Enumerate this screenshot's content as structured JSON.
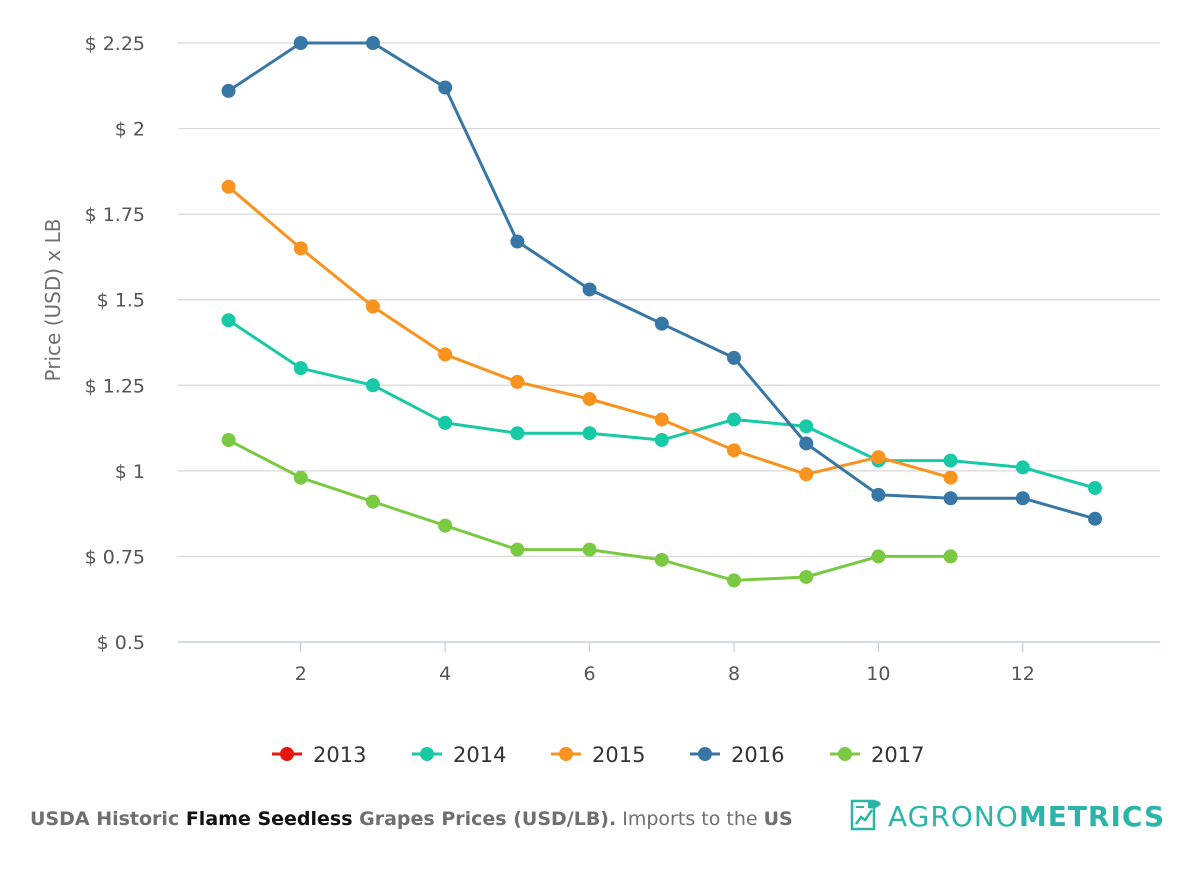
{
  "chart_data": {
    "type": "line",
    "title": "",
    "xlabel": "",
    "ylabel": "Price (USD) x LB",
    "xlim": [
      0.3,
      13.9
    ],
    "ylim": [
      0.5,
      2.25
    ],
    "x_ticks": [
      2,
      4,
      6,
      8,
      10,
      12
    ],
    "y_ticks": [
      0.5,
      0.75,
      1,
      1.25,
      1.5,
      1.75,
      2,
      2.25
    ],
    "y_tick_labels": [
      "$ 0.5",
      "$ 0.75",
      "$ 1",
      "$ 1.25",
      "$ 1.5",
      "$ 1.75",
      "$ 2",
      "$ 2.25"
    ],
    "grid": true,
    "legend_position": "bottom",
    "series": [
      {
        "name": "2013",
        "color": "#e8150f",
        "x": [],
        "y": []
      },
      {
        "name": "2014",
        "color": "#17c9a5",
        "x": [
          1,
          2,
          3,
          4,
          5,
          6,
          7,
          8,
          9,
          10,
          11,
          12,
          13
        ],
        "y": [
          1.44,
          1.3,
          1.25,
          1.14,
          1.11,
          1.11,
          1.09,
          1.15,
          1.13,
          1.03,
          1.03,
          1.01,
          0.95
        ]
      },
      {
        "name": "2015",
        "color": "#f7931e",
        "x": [
          1,
          2,
          3,
          4,
          5,
          6,
          7,
          8,
          9,
          10,
          11
        ],
        "y": [
          1.83,
          1.65,
          1.48,
          1.34,
          1.26,
          1.21,
          1.15,
          1.06,
          0.99,
          1.04,
          0.98
        ]
      },
      {
        "name": "2016",
        "color": "#3877a5",
        "x": [
          1,
          2,
          3,
          4,
          5,
          6,
          7,
          8,
          9,
          10,
          11,
          12,
          13
        ],
        "y": [
          2.11,
          2.25,
          2.25,
          2.12,
          1.67,
          1.53,
          1.43,
          1.33,
          1.08,
          0.93,
          0.92,
          0.92,
          0.86
        ]
      },
      {
        "name": "2017",
        "color": "#7ac943",
        "x": [
          1,
          2,
          3,
          4,
          5,
          6,
          7,
          8,
          9,
          10,
          11
        ],
        "y": [
          1.09,
          0.98,
          0.91,
          0.84,
          0.77,
          0.77,
          0.74,
          0.68,
          0.69,
          0.75,
          0.75
        ]
      }
    ]
  },
  "caption": {
    "part1": "USDA Historic ",
    "part2": "Flame Seedless",
    "part3": " Grapes Prices (USD/LB).",
    "part4": " Imports to the ",
    "part5": "US"
  },
  "brand": {
    "light": "AGRONO",
    "bold": "METRICS",
    "color": "#2bb5a8",
    "icon": "chart-document-icon"
  }
}
